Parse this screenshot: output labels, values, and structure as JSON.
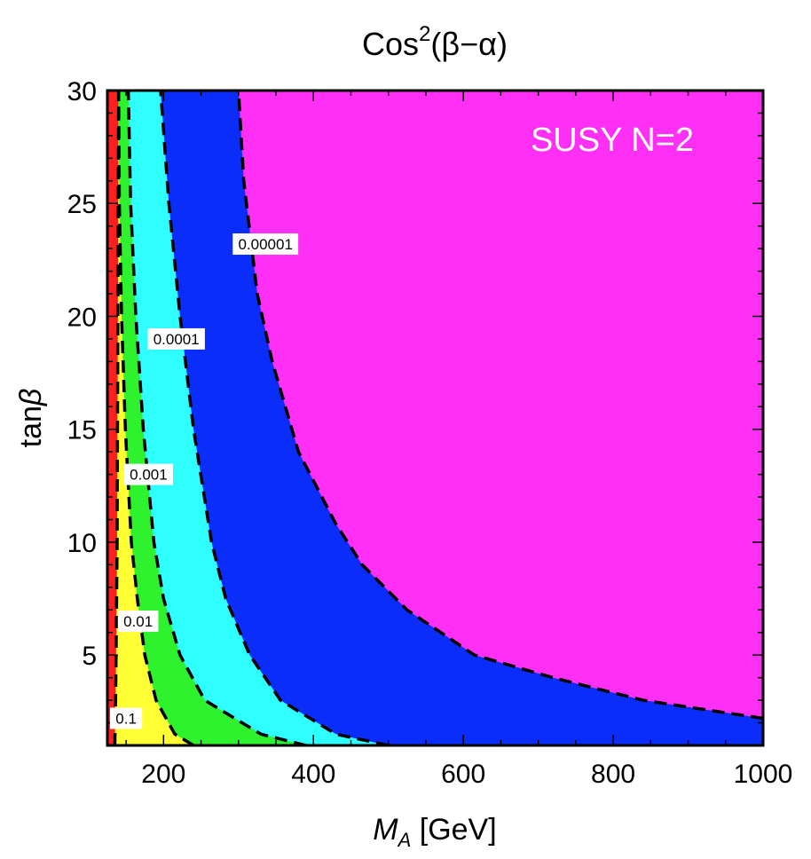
{
  "chart_data": {
    "type": "contour",
    "title": "Cos²(β−α)",
    "title_parts": {
      "base": "Cos",
      "sup": "2",
      "arg": "(β−α)"
    },
    "xlabel": "M_A [GeV]",
    "xlabel_parts": {
      "var": "M",
      "sub": "A",
      "unit": " [GeV]"
    },
    "ylabel": "tanβ",
    "ylabel_parts": {
      "fn": "tan",
      "var": "β"
    },
    "xlim": [
      125,
      1000
    ],
    "ylim": [
      1,
      30
    ],
    "xticks": [
      200,
      400,
      600,
      800,
      1000
    ],
    "yticks": [
      5,
      10,
      15,
      20,
      25,
      30
    ],
    "annotation": "SUSY N=2",
    "region_colors": [
      "#ff1f1f",
      "#ffff33",
      "#2ef22e",
      "#2efefe",
      "#0a2dfa",
      "#ff2ff5"
    ],
    "levels": [
      {
        "value": 0.1,
        "label": "0.1",
        "label_at": {
          "x": 150,
          "y": 2.2
        },
        "curve": [
          [
            135,
            1
          ],
          [
            136,
            3
          ],
          [
            137,
            6
          ],
          [
            138,
            10
          ],
          [
            140,
            30
          ]
        ]
      },
      {
        "value": 0.01,
        "label": "0.01",
        "label_at": {
          "x": 166,
          "y": 6.5
        },
        "curve": [
          [
            240,
            1
          ],
          [
            215,
            1.5
          ],
          [
            190,
            3
          ],
          [
            175,
            5
          ],
          [
            165,
            7.5
          ],
          [
            157,
            10
          ],
          [
            149,
            15
          ],
          [
            144,
            20
          ],
          [
            141,
            25
          ],
          [
            140,
            30
          ]
        ]
      },
      {
        "value": 0.001,
        "label": "0.001",
        "label_at": {
          "x": 180,
          "y": 13
        },
        "curve": [
          [
            390,
            1
          ],
          [
            330,
            1.5
          ],
          [
            255,
            3
          ],
          [
            222,
            5
          ],
          [
            200,
            7.5
          ],
          [
            187,
            10
          ],
          [
            173,
            15
          ],
          [
            163,
            20
          ],
          [
            156,
            25
          ],
          [
            153,
            30
          ]
        ]
      },
      {
        "value": 0.0001,
        "label": "0.0001",
        "label_at": {
          "x": 217,
          "y": 19
        },
        "curve": [
          [
            500,
            1
          ],
          [
            430,
            1.5
          ],
          [
            356,
            3
          ],
          [
            315,
            5
          ],
          [
            283,
            7.5
          ],
          [
            264,
            10
          ],
          [
            240,
            15
          ],
          [
            222,
            20
          ],
          [
            207,
            25
          ],
          [
            196,
            30
          ]
        ]
      },
      {
        "value": 1e-05,
        "label": "0.00001",
        "label_at": {
          "x": 336,
          "y": 23.2
        },
        "curve": [
          [
            1000,
            2.2
          ],
          [
            840,
            3
          ],
          [
            720,
            4
          ],
          [
            615,
            5
          ],
          [
            525,
            7
          ],
          [
            465,
            9
          ],
          [
            430,
            10.8
          ],
          [
            380,
            14
          ],
          [
            345,
            18
          ],
          [
            325,
            21
          ],
          [
            307,
            26
          ],
          [
            300,
            30
          ]
        ]
      }
    ]
  }
}
